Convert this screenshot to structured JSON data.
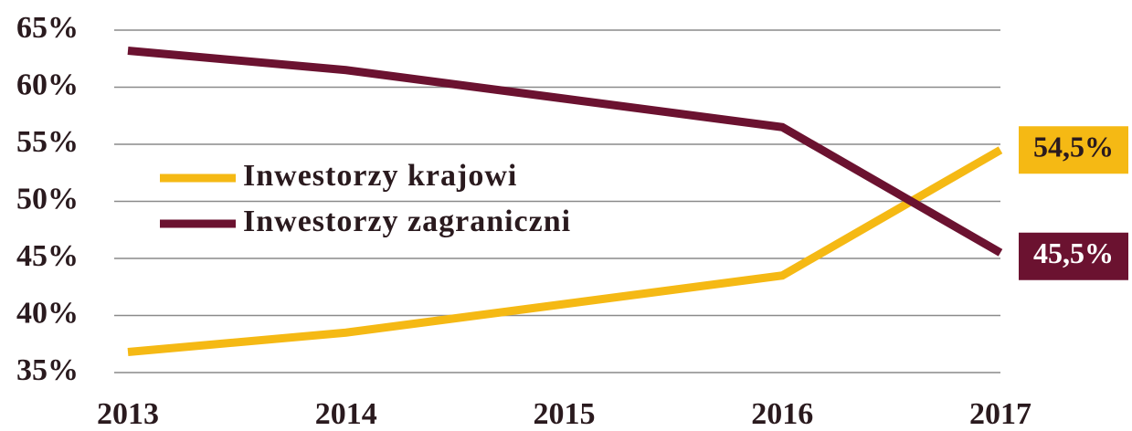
{
  "chart_data": {
    "type": "line",
    "categories": [
      "2013",
      "2014",
      "2015",
      "2016",
      "2017"
    ],
    "series": [
      {
        "name": "Inwestorzy krajowi",
        "color": "#f5b914",
        "values": [
          36.8,
          38.5,
          41,
          43.5,
          54.5
        ],
        "value_labels": [
          null,
          null,
          null,
          null,
          "54,5%"
        ]
      },
      {
        "name": "Inwestorzy zagraniczni",
        "color": "#6b1230",
        "values": [
          63.2,
          61.5,
          59,
          56.5,
          45.5
        ],
        "value_labels": [
          null,
          null,
          null,
          null,
          "45,5%"
        ]
      }
    ],
    "ylim": [
      35,
      65
    ],
    "yticks": [
      {
        "value": 35,
        "label": "35%"
      },
      {
        "value": 40,
        "label": "40%"
      },
      {
        "value": 45,
        "label": "45%"
      },
      {
        "value": 50,
        "label": "50%"
      },
      {
        "value": 55,
        "label": "55%"
      },
      {
        "value": 60,
        "label": "60%"
      },
      {
        "value": 65,
        "label": "65%"
      }
    ],
    "grid": true
  }
}
